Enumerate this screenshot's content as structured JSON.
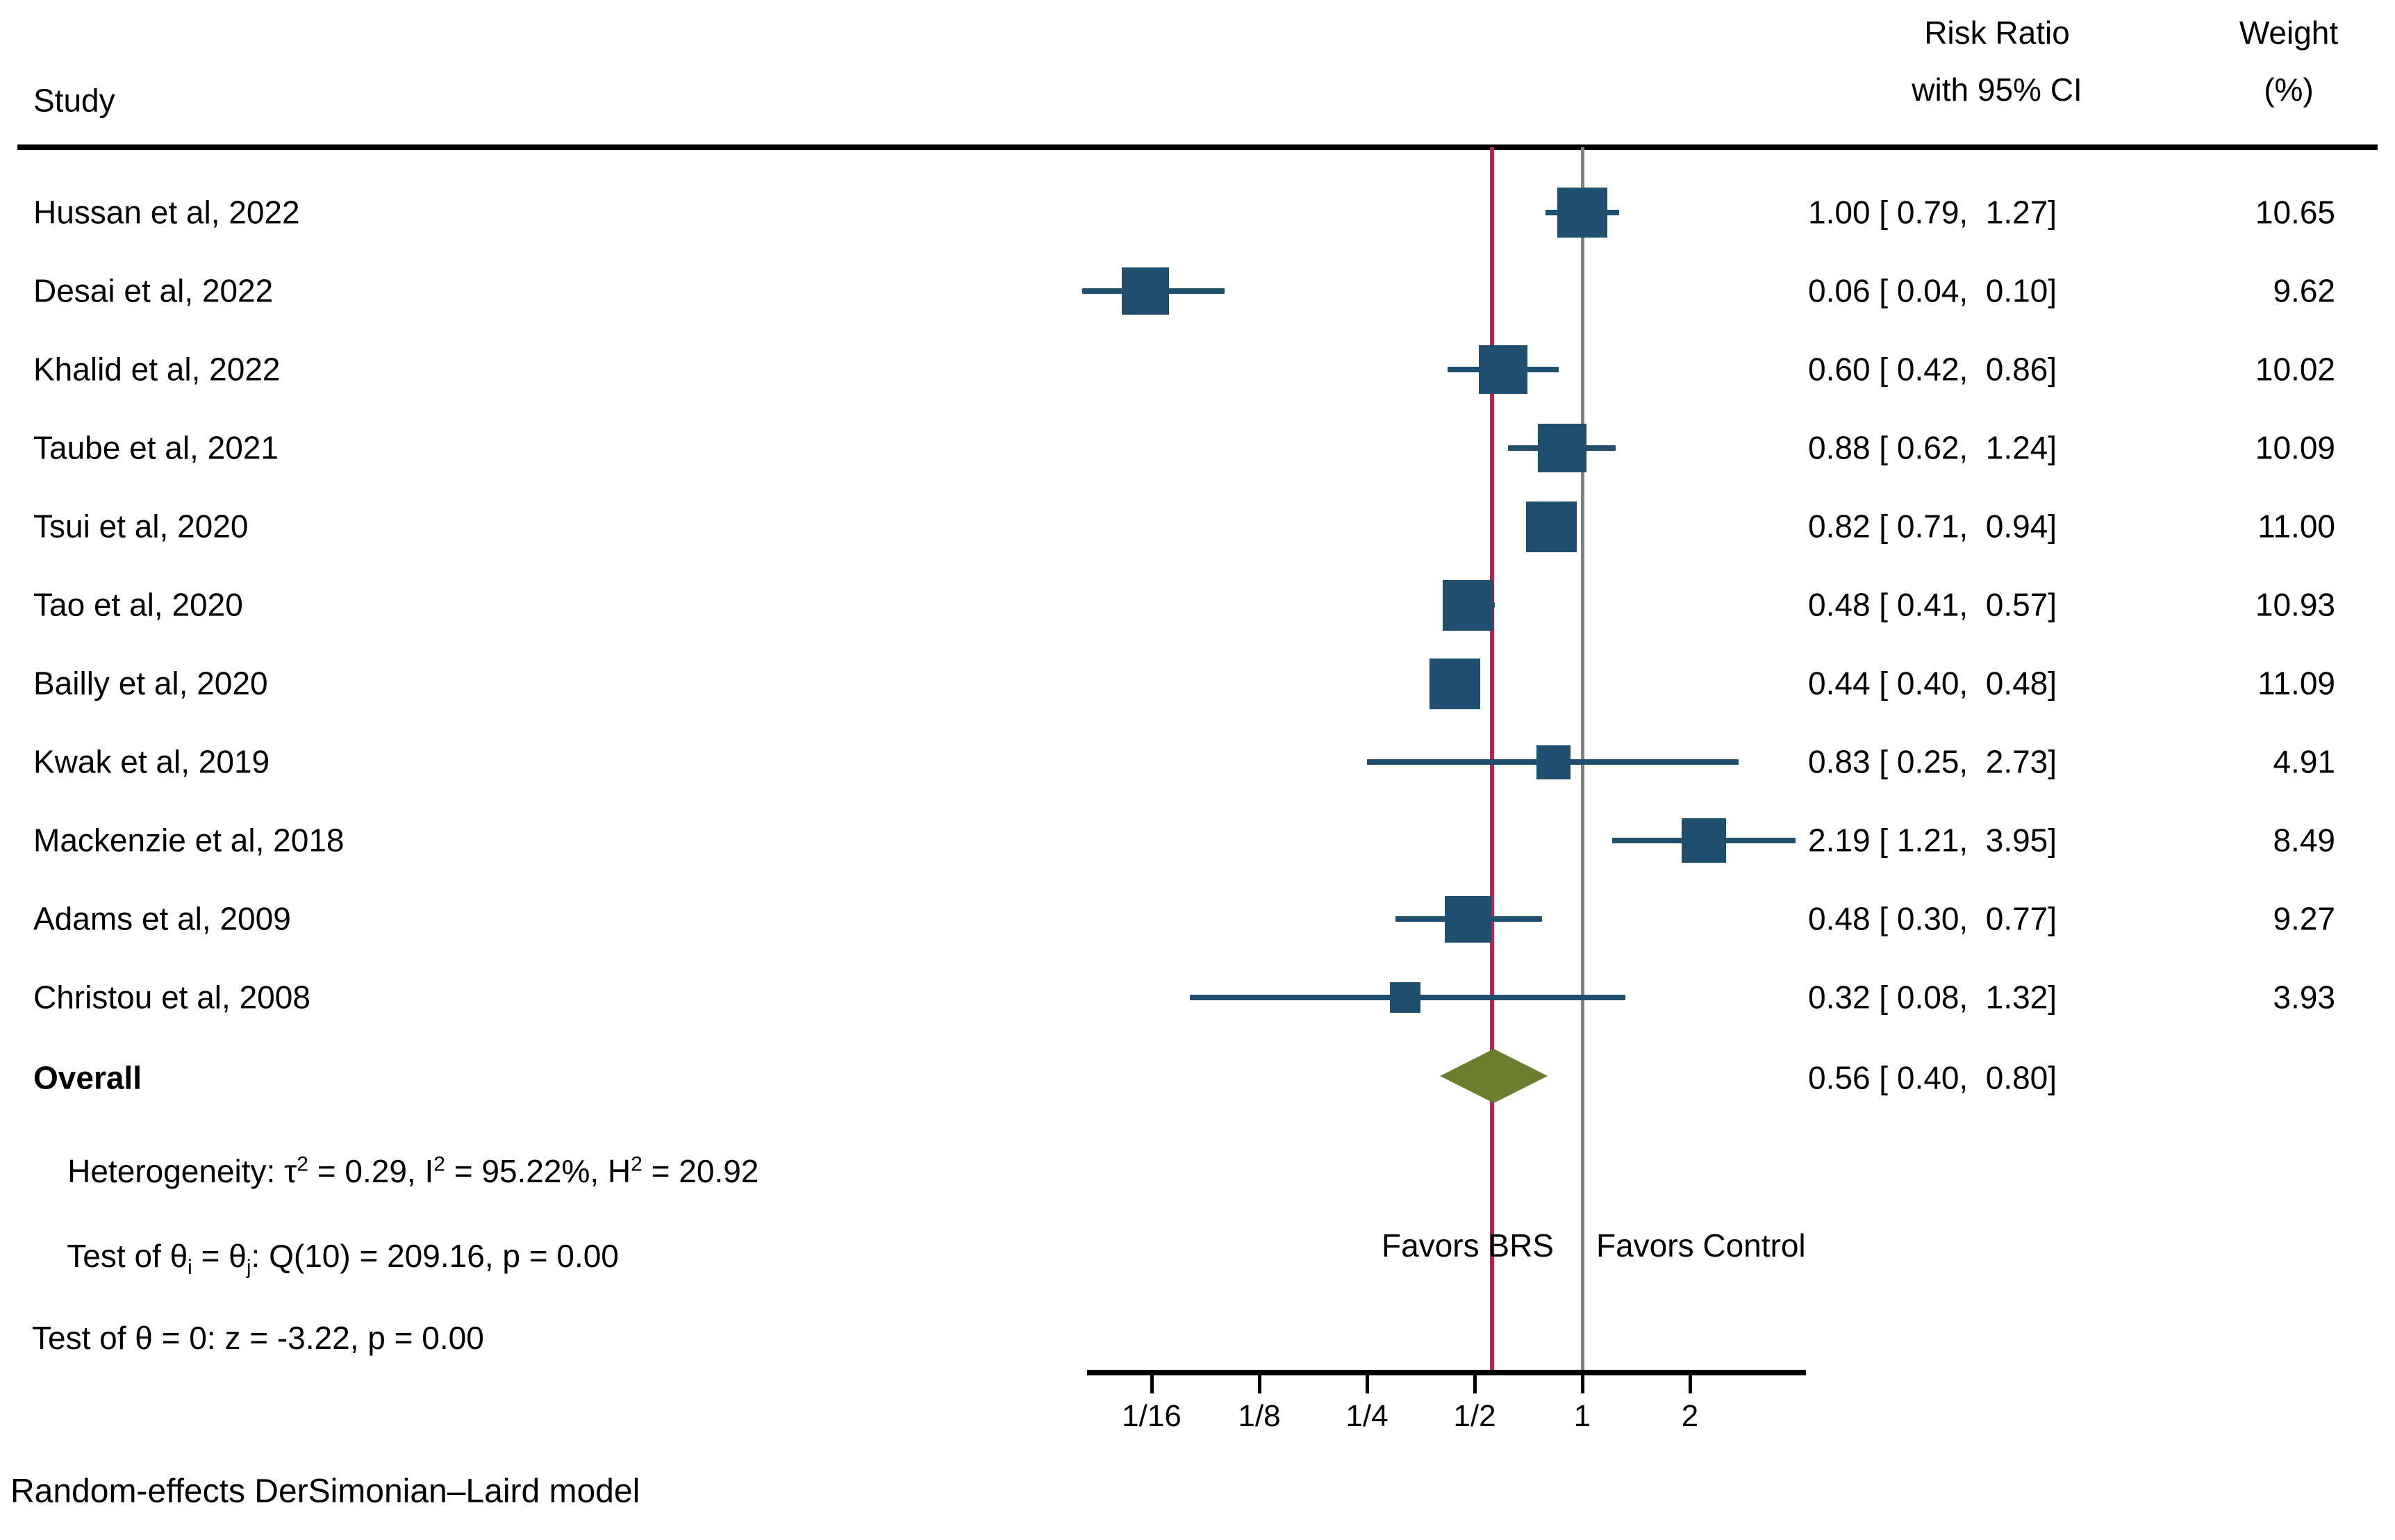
{
  "header": {
    "study_col": "Study",
    "effect_col_line1": "Risk Ratio",
    "effect_col_line2": "with 95% CI",
    "weight_col_line1": "Weight",
    "weight_col_line2": "(%)"
  },
  "chart_data": {
    "type": "scatter",
    "subtype": "forest-plot",
    "x_scale": "log2",
    "xlabel": "Risk Ratio",
    "x_ticks": [
      {
        "label": "1/16",
        "value": 0.0625
      },
      {
        "label": "1/8",
        "value": 0.125
      },
      {
        "label": "1/4",
        "value": 0.25
      },
      {
        "label": "1/2",
        "value": 0.5
      },
      {
        "label": "1",
        "value": 1
      },
      {
        "label": "2",
        "value": 2
      }
    ],
    "studies": [
      {
        "label": "Hussan et al, 2022",
        "rr": 1.0,
        "ci_low": 0.79,
        "ci_high": 1.27,
        "weight": 10.65,
        "rr_text": "1.00 [ 0.79,  1.27]",
        "weight_text": "10.65"
      },
      {
        "label": "Desai et al, 2022",
        "rr": 0.06,
        "ci_low": 0.04,
        "ci_high": 0.1,
        "weight": 9.62,
        "rr_text": "0.06 [ 0.04,  0.10]",
        "weight_text": "9.62"
      },
      {
        "label": "Khalid et al, 2022",
        "rr": 0.6,
        "ci_low": 0.42,
        "ci_high": 0.86,
        "weight": 10.02,
        "rr_text": "0.60 [ 0.42,  0.86]",
        "weight_text": "10.02"
      },
      {
        "label": "Taube et al, 2021",
        "rr": 0.88,
        "ci_low": 0.62,
        "ci_high": 1.24,
        "weight": 10.09,
        "rr_text": "0.88 [ 0.62,  1.24]",
        "weight_text": "10.09"
      },
      {
        "label": "Tsui et al, 2020",
        "rr": 0.82,
        "ci_low": 0.71,
        "ci_high": 0.94,
        "weight": 11.0,
        "rr_text": "0.82 [ 0.71,  0.94]",
        "weight_text": "11.00"
      },
      {
        "label": "Tao et al, 2020",
        "rr": 0.48,
        "ci_low": 0.41,
        "ci_high": 0.57,
        "weight": 10.93,
        "rr_text": "0.48 [ 0.41,  0.57]",
        "weight_text": "10.93"
      },
      {
        "label": "Bailly et al, 2020",
        "rr": 0.44,
        "ci_low": 0.4,
        "ci_high": 0.48,
        "weight": 11.09,
        "rr_text": "0.44 [ 0.40,  0.48]",
        "weight_text": "11.09"
      },
      {
        "label": "Kwak et al, 2019",
        "rr": 0.83,
        "ci_low": 0.25,
        "ci_high": 2.73,
        "weight": 4.91,
        "rr_text": "0.83 [ 0.25,  2.73]",
        "weight_text": "4.91"
      },
      {
        "label": "Mackenzie et al, 2018",
        "rr": 2.19,
        "ci_low": 1.21,
        "ci_high": 3.95,
        "weight": 8.49,
        "rr_text": "2.19 [ 1.21,  3.95]",
        "weight_text": "8.49"
      },
      {
        "label": "Adams et al, 2009",
        "rr": 0.48,
        "ci_low": 0.3,
        "ci_high": 0.77,
        "weight": 9.27,
        "rr_text": "0.48 [ 0.30,  0.77]",
        "weight_text": "9.27"
      },
      {
        "label": "Christou et al, 2008",
        "rr": 0.32,
        "ci_low": 0.08,
        "ci_high": 1.32,
        "weight": 3.93,
        "rr_text": "0.32 [ 0.08,  1.32]",
        "weight_text": "3.93"
      }
    ],
    "overall": {
      "label": "Overall",
      "rr": 0.56,
      "ci_low": 0.4,
      "ci_high": 0.8,
      "rr_text": "0.56 [ 0.40,  0.80]"
    },
    "reference_line_value": 1,
    "overall_line_value": 0.56,
    "favors_left": "Favors BRS",
    "favors_right": "Favors Control",
    "legend_position": "none",
    "grid": false,
    "colors": {
      "marker": "#1f4e6e",
      "ci_line": "#1f4e6e",
      "overall_diamond": "#6b7d2f",
      "overall_line": "#c0204c",
      "reference_line": "#808080",
      "axis": "#000000"
    }
  },
  "stats": {
    "heterogeneity": {
      "p1": "Heterogeneity: τ",
      "s1": "2",
      "p2": " = 0.29, I",
      "s2": "2",
      "p3": " = 95.22%, H",
      "s3": "2",
      "p4": " = 20.92"
    },
    "test_q": {
      "p1": "Test of θ",
      "sub1": "i",
      "p2": " = θ",
      "sub2": "j",
      "p3": ": Q(10) = 209.16, p = 0.00"
    },
    "test_z": "Test of θ = 0: z = -3.22, p = 0.00"
  },
  "footnote": "Random-effects DerSimonian–Laird model"
}
